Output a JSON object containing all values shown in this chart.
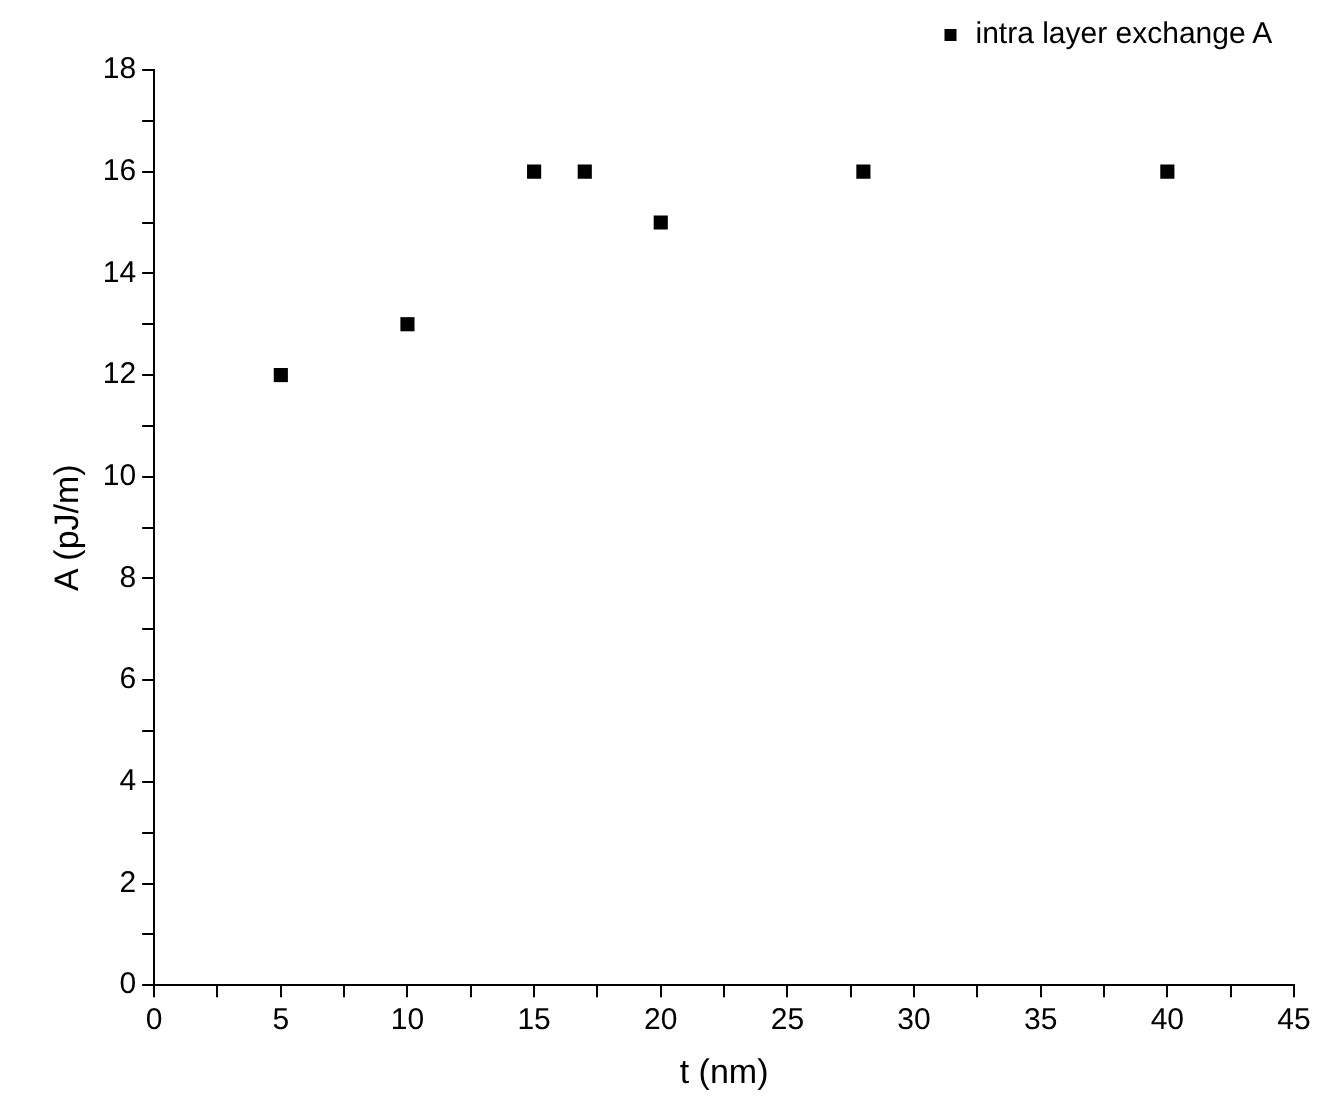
{
  "chart_data": {
    "type": "scatter",
    "xlabel": "t (nm)",
    "ylabel": "A (pJ/m)",
    "x": [
      5,
      10,
      15,
      17,
      20,
      28,
      40
    ],
    "series": [
      {
        "name": "intra layer exchange A",
        "color": "#000000",
        "values": [
          12,
          13,
          16,
          16,
          15,
          16,
          16
        ]
      }
    ],
    "xlim": [
      0,
      45
    ],
    "xticks": [
      0,
      {
        "value": 2.5,
        "label": null
      },
      5,
      {
        "value": 7.5,
        "label": null
      },
      10,
      {
        "value": 12.5,
        "label": null
      },
      15,
      {
        "value": 17.5,
        "label": null
      },
      20,
      {
        "value": 22.5,
        "label": null
      },
      25,
      {
        "value": 27.5,
        "label": null
      },
      30,
      {
        "value": 32.5,
        "label": null
      },
      35,
      {
        "value": 37.5,
        "label": null
      },
      40,
      {
        "value": 42.5,
        "label": null
      },
      45
    ],
    "ylim": [
      0,
      18
    ],
    "yticks": [
      0,
      {
        "value": 1,
        "label": null
      },
      2,
      {
        "value": 3,
        "label": null
      },
      4,
      {
        "value": 5,
        "label": null
      },
      6,
      {
        "value": 7,
        "label": null
      },
      8,
      {
        "value": 9,
        "label": null
      },
      10,
      {
        "value": 11,
        "label": null
      },
      12,
      {
        "value": 13,
        "label": null
      },
      14,
      {
        "value": 15,
        "label": null
      },
      16,
      {
        "value": 17,
        "label": null
      },
      18
    ],
    "grid": false,
    "legend": "top right",
    "marker": "square"
  }
}
